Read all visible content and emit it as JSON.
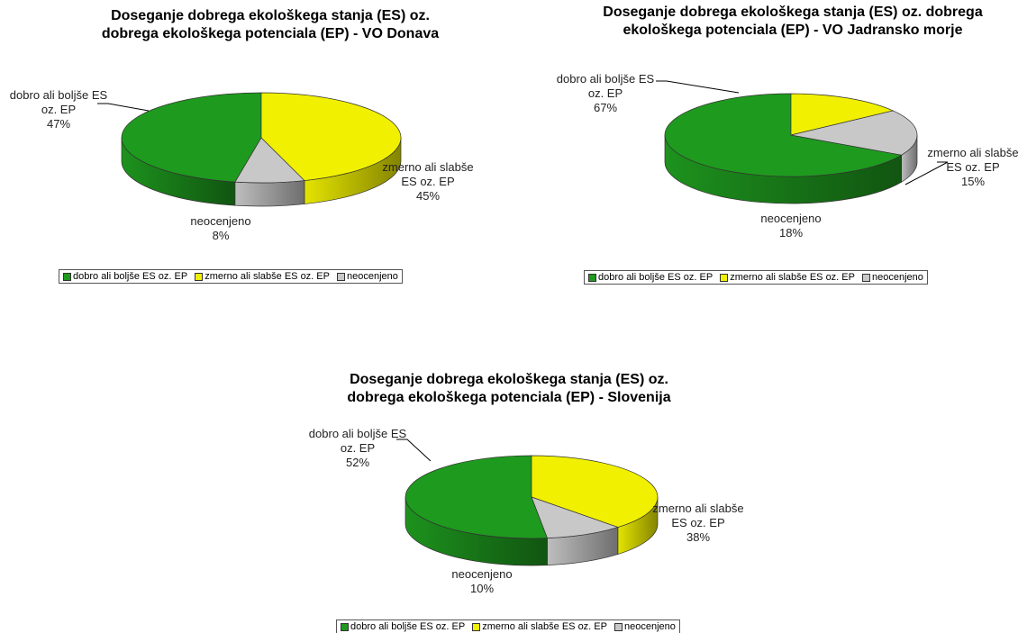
{
  "chart_data": [
    {
      "type": "pie",
      "title": "Doseganje dobrega ekološkega stanja (ES) oz. dobrega ekološkega potenciala (EP) - VO Donava",
      "categories": [
        "dobro ali boljše ES oz. EP",
        "zmerno ali slabše ES oz. EP",
        "neocenjeno"
      ],
      "values": [
        47,
        45,
        8
      ],
      "value_labels": [
        "47%",
        "45%",
        "8%"
      ],
      "colors": [
        "#1e9a1e",
        "#f0f000",
        "#c8c8c8"
      ],
      "legend": "bottom"
    },
    {
      "type": "pie",
      "title": "Doseganje dobrega ekološkega stanja (ES) oz. dobrega ekološkega potenciala (EP) - VO Jadransko morje",
      "categories": [
        "dobro ali boljše ES oz. EP",
        "zmerno ali slabše ES oz. EP",
        "neocenjeno"
      ],
      "values": [
        67,
        15,
        18
      ],
      "value_labels": [
        "67%",
        "15%",
        "18%"
      ],
      "colors": [
        "#1e9a1e",
        "#f0f000",
        "#c8c8c8"
      ],
      "legend": "bottom"
    },
    {
      "type": "pie",
      "title": "Doseganje dobrega ekološkega stanja (ES) oz. dobrega ekološkega potenciala (EP) - Slovenija",
      "categories": [
        "dobro ali boljše ES oz. EP",
        "zmerno ali slabše ES oz. EP",
        "neocenjeno"
      ],
      "values": [
        52,
        38,
        10
      ],
      "value_labels": [
        "52%",
        "38%",
        "10%"
      ],
      "colors": [
        "#1e9a1e",
        "#f0f000",
        "#c8c8c8"
      ],
      "legend": "bottom"
    }
  ]
}
